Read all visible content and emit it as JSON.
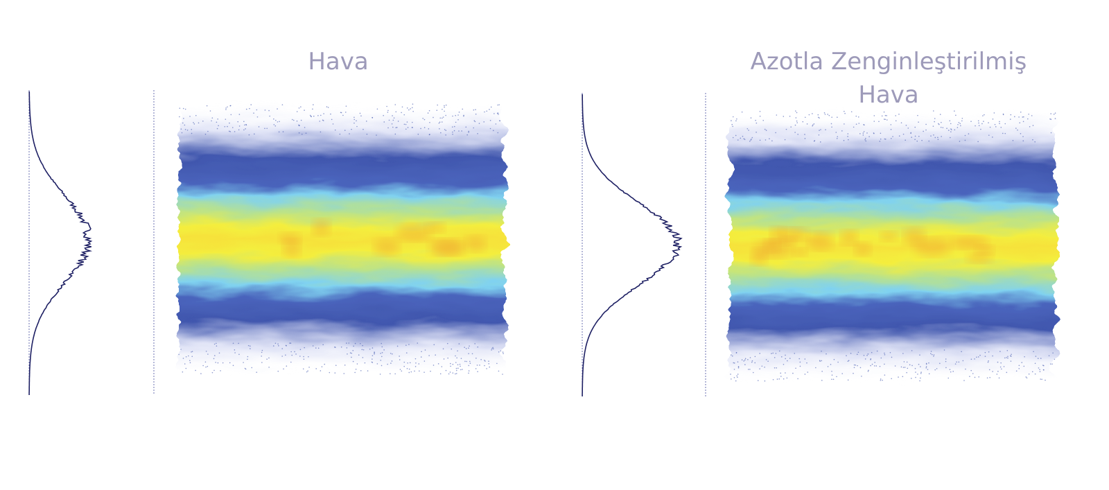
{
  "panels": [
    {
      "title_lines": [
        "Hava"
      ]
    },
    {
      "title_lines": [
        "Azotla Zenginleştirilmiş",
        "Hava"
      ]
    }
  ]
}
